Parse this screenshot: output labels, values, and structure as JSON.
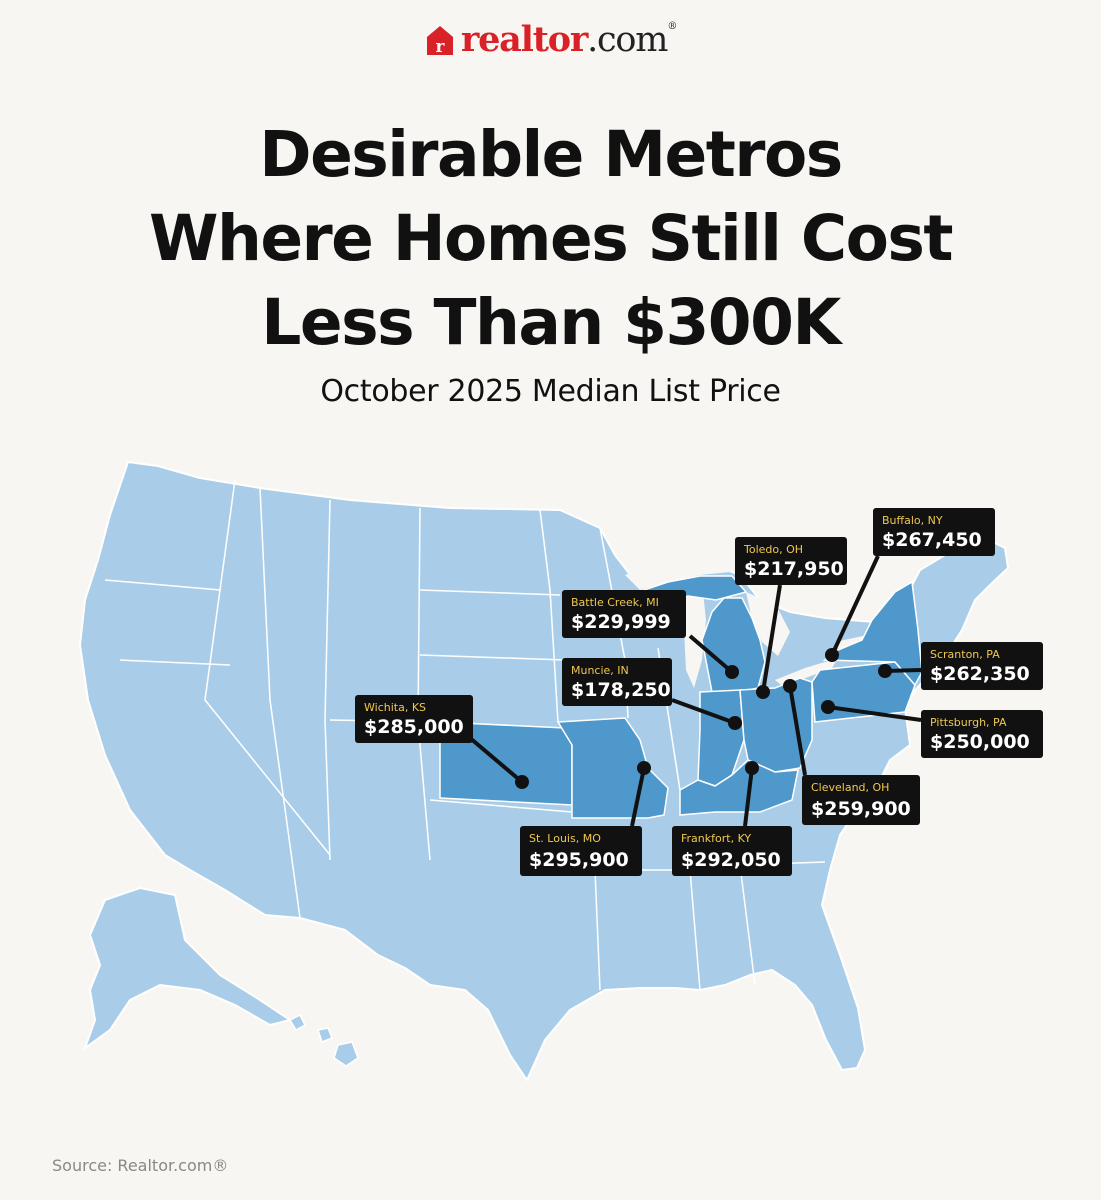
{
  "brand": {
    "logo_word": "realtor.com",
    "logo_word_part1": "realtor",
    "logo_word_part2": ".com",
    "registered_mark": "®",
    "brand_color": "#d92228"
  },
  "headline": {
    "line1": "Desirable Metros",
    "line2": "Where Homes Still Cost",
    "line3": "Less Than $300K"
  },
  "subtitle": "October 2025 Median List Price",
  "colors": {
    "background": "#f8f6f2",
    "land_light": "#a9cde8",
    "land_dark": "#4f98cc",
    "borders": "#ffffff",
    "label_box": "#111111",
    "label_city": "#f0c84e",
    "label_price": "#ffffff"
  },
  "metros": [
    {
      "id": "wichita",
      "city": "Wichita, KS",
      "price": "$285,000"
    },
    {
      "id": "battle-creek",
      "city": "Battle Creek, MI",
      "price": "$229,999"
    },
    {
      "id": "muncie",
      "city": "Muncie, IN",
      "price": "$178,250"
    },
    {
      "id": "toledo",
      "city": "Toledo, OH",
      "price": "$217,950"
    },
    {
      "id": "buffalo",
      "city": "Buffalo, NY",
      "price": "$267,450"
    },
    {
      "id": "scranton",
      "city": "Scranton, PA",
      "price": "$262,350"
    },
    {
      "id": "pittsburgh",
      "city": "Pittsburgh, PA",
      "price": "$250,000"
    },
    {
      "id": "cleveland",
      "city": "Cleveland, OH",
      "price": "$259,900"
    },
    {
      "id": "frankfort",
      "city": "Frankfort, KY",
      "price": "$292,050"
    },
    {
      "id": "st-louis",
      "city": "St. Louis, MO",
      "price": "$295,900"
    }
  ],
  "source": "Source: Realtor.com®"
}
